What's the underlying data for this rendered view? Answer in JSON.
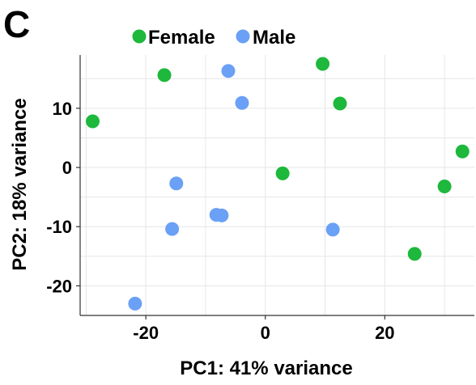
{
  "panel_label": "C",
  "colors": {
    "female": "#1db83c",
    "male": "#6aa0f5",
    "grid": "#e6e6e6",
    "axis": "#333333"
  },
  "chart_data": {
    "type": "scatter",
    "title": "",
    "xlabel": "PC1: 41% variance",
    "ylabel": "PC2: 18% variance",
    "xlim": [
      -31,
      35
    ],
    "ylim": [
      -25,
      19
    ],
    "xticks": [
      -20,
      0,
      20
    ],
    "yticks": [
      -20,
      -10,
      0,
      10
    ],
    "grid": true,
    "legend_position": "top",
    "series": [
      {
        "name": "Female",
        "color": "#1db83c",
        "points": [
          {
            "x": -28.9,
            "y": 7.8
          },
          {
            "x": -16.9,
            "y": 15.6
          },
          {
            "x": 9.6,
            "y": 17.5
          },
          {
            "x": 12.5,
            "y": 10.8
          },
          {
            "x": 2.9,
            "y": -1.0
          },
          {
            "x": 33.0,
            "y": 2.7
          },
          {
            "x": 30.0,
            "y": -3.2
          },
          {
            "x": 25.0,
            "y": -14.6
          }
        ]
      },
      {
        "name": "Male",
        "color": "#6aa0f5",
        "points": [
          {
            "x": -6.2,
            "y": 16.3
          },
          {
            "x": -3.9,
            "y": 10.9
          },
          {
            "x": -14.9,
            "y": -2.7
          },
          {
            "x": -8.2,
            "y": -8.0
          },
          {
            "x": -7.3,
            "y": -8.1
          },
          {
            "x": -15.6,
            "y": -10.4
          },
          {
            "x": 11.3,
            "y": -10.5
          },
          {
            "x": -21.8,
            "y": -23.0
          }
        ]
      }
    ]
  }
}
